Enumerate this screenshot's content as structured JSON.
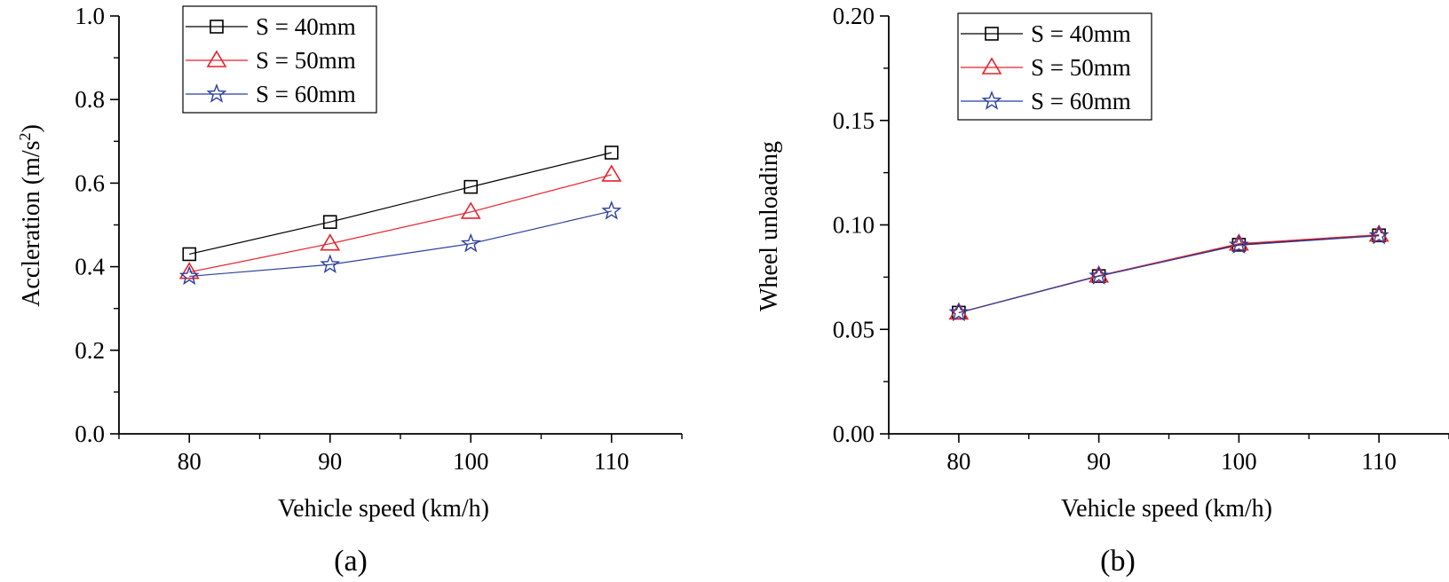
{
  "colors": {
    "s40": "#000000",
    "s50": "#e8202a",
    "s60": "#2b3f9e",
    "axis": "#000000"
  },
  "legend": [
    "S = 40mm",
    "S = 50mm",
    "S = 60mm"
  ],
  "panels": [
    {
      "label": "(a)",
      "xlabel": "Vehicle speed (km/h)",
      "ylabel_main": "Accleration (m/s",
      "ylabel_sup": "2",
      "ylabel_end": ")",
      "xticks": [
        "80",
        "90",
        "100",
        "110"
      ],
      "yticks": [
        "0.0",
        "0.2",
        "0.4",
        "0.6",
        "0.8",
        "1.0"
      ]
    },
    {
      "label": "(b)",
      "xlabel": "Vehicle speed (km/h)",
      "ylabel_main": "Wheel unloading",
      "xticks": [
        "80",
        "90",
        "100",
        "110"
      ],
      "yticks": [
        "0.00",
        "0.05",
        "0.10",
        "0.15",
        "0.20"
      ]
    }
  ],
  "chart_data": [
    {
      "type": "line",
      "title": "(a)",
      "xlabel": "Vehicle speed (km/h)",
      "ylabel": "Accleration (m/s2)",
      "x": [
        80,
        90,
        100,
        110
      ],
      "xlim": [
        75,
        115
      ],
      "ylim": [
        0,
        1.0
      ],
      "series": [
        {
          "name": "S = 40mm",
          "marker": "square",
          "color": "#000000",
          "values": [
            0.43,
            0.507,
            0.591,
            0.673
          ]
        },
        {
          "name": "S = 50mm",
          "marker": "triangle",
          "color": "#e8202a",
          "values": [
            0.387,
            0.455,
            0.531,
            0.62
          ]
        },
        {
          "name": "S = 60mm",
          "marker": "star",
          "color": "#2b3f9e",
          "values": [
            0.377,
            0.405,
            0.455,
            0.533
          ]
        }
      ]
    },
    {
      "type": "line",
      "title": "(b)",
      "xlabel": "Vehicle speed (km/h)",
      "ylabel": "Wheel unloading",
      "x": [
        80,
        90,
        100,
        110
      ],
      "xlim": [
        75,
        115
      ],
      "ylim": [
        0,
        0.2
      ],
      "series": [
        {
          "name": "S = 40mm",
          "marker": "square",
          "color": "#000000",
          "values": [
            0.058,
            0.0755,
            0.0905,
            0.095
          ]
        },
        {
          "name": "S = 50mm",
          "marker": "triangle",
          "color": "#e8202a",
          "values": [
            0.058,
            0.0757,
            0.091,
            0.0953
          ]
        },
        {
          "name": "S = 60mm",
          "marker": "star",
          "color": "#2b3f9e",
          "values": [
            0.058,
            0.0755,
            0.0903,
            0.0948
          ]
        }
      ]
    }
  ]
}
